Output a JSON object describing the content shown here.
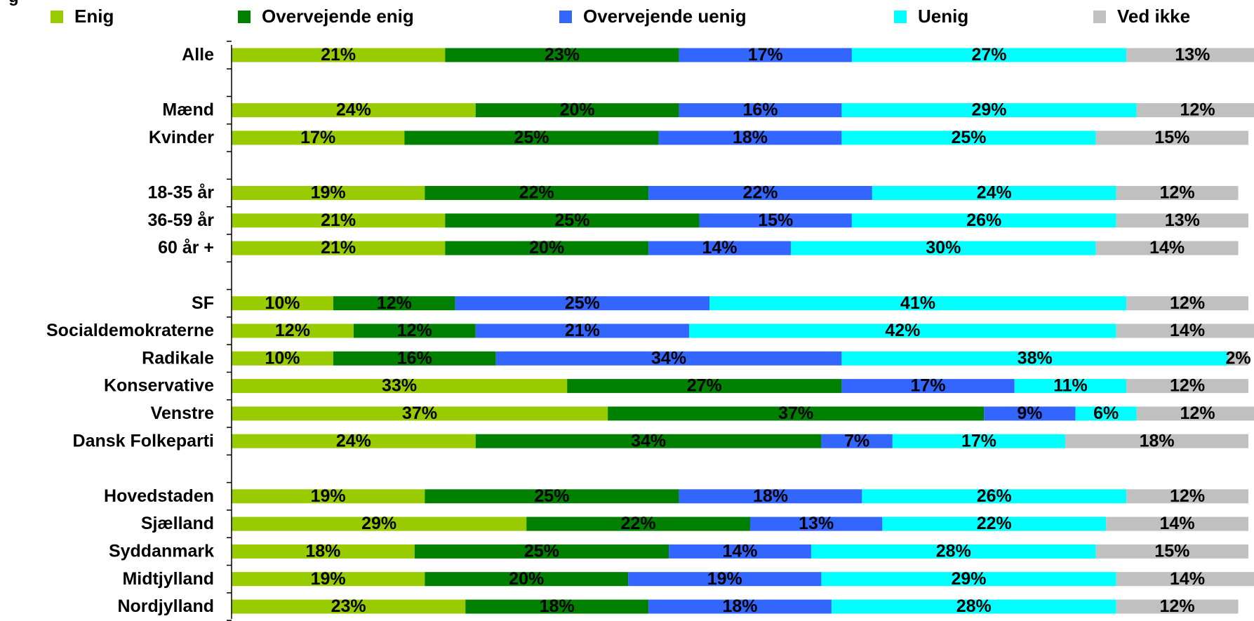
{
  "chart_data": {
    "type": "bar",
    "orientation": "horizontal",
    "stacked": true,
    "title": "",
    "xlabel": "",
    "ylabel": "",
    "xlim": [
      0,
      100
    ],
    "grid": false,
    "legend_position": "top",
    "label_suffix": "%",
    "categories": [
      "Alle",
      "",
      "Mænd",
      "Kvinder",
      "",
      "18-35 år",
      "36-59 år",
      "60 år +",
      "",
      "SF",
      "Socialdemokraterne",
      "Radikale",
      "Konservative",
      "Venstre",
      "Dansk Folkeparti",
      "",
      "Hovedstaden",
      "Sjælland",
      "Syddanmark",
      "Midtjylland",
      "Nordjylland"
    ],
    "series": [
      {
        "name": "Enig",
        "color": "#99CC00",
        "values": [
          21,
          null,
          24,
          17,
          null,
          19,
          21,
          21,
          null,
          10,
          12,
          10,
          33,
          37,
          24,
          null,
          19,
          29,
          18,
          19,
          23
        ]
      },
      {
        "name": "Overvejende enig",
        "color": "#008000",
        "values": [
          23,
          null,
          20,
          25,
          null,
          22,
          25,
          20,
          null,
          12,
          12,
          16,
          27,
          37,
          34,
          null,
          25,
          22,
          25,
          20,
          18
        ]
      },
      {
        "name": "Overvejende uenig",
        "color": "#3366FF",
        "values": [
          17,
          null,
          16,
          18,
          null,
          22,
          15,
          14,
          null,
          25,
          21,
          34,
          17,
          9,
          7,
          null,
          18,
          13,
          14,
          19,
          18
        ]
      },
      {
        "name": "Uenig",
        "color": "#00FFFF",
        "values": [
          27,
          null,
          29,
          25,
          null,
          24,
          26,
          30,
          null,
          41,
          42,
          38,
          11,
          6,
          17,
          null,
          26,
          22,
          28,
          29,
          28
        ]
      },
      {
        "name": "Ved ikke",
        "color": "#C0C0C0",
        "values": [
          13,
          null,
          12,
          15,
          null,
          12,
          13,
          14,
          null,
          12,
          14,
          2,
          12,
          12,
          18,
          null,
          12,
          14,
          15,
          14,
          12
        ]
      }
    ]
  }
}
